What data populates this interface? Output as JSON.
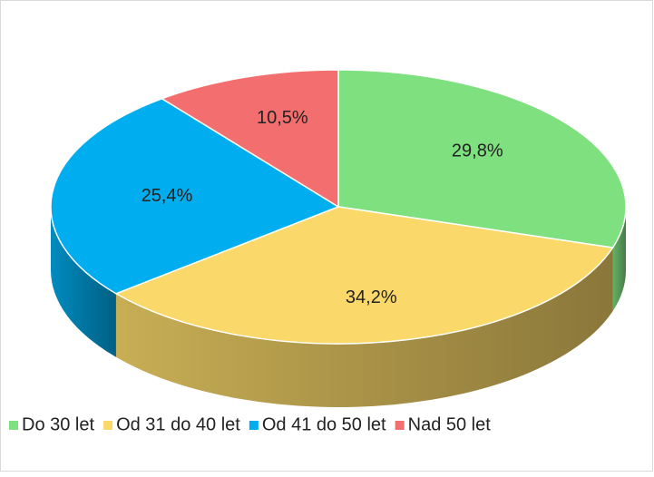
{
  "chart_data": {
    "type": "pie3d",
    "categories": [
      "Do 30 let",
      "Od 31 do 40 let",
      "Od 41 do 50 let",
      "Nad 50 let"
    ],
    "values": [
      29.8,
      34.2,
      25.4,
      10.5
    ],
    "value_labels": [
      "29,8%",
      "34,2%",
      "25,4%",
      "10,5%"
    ],
    "colors": [
      "#7ee07e",
      "#fad96a",
      "#00aeef",
      "#f36f6f"
    ],
    "legend": "bottom"
  }
}
